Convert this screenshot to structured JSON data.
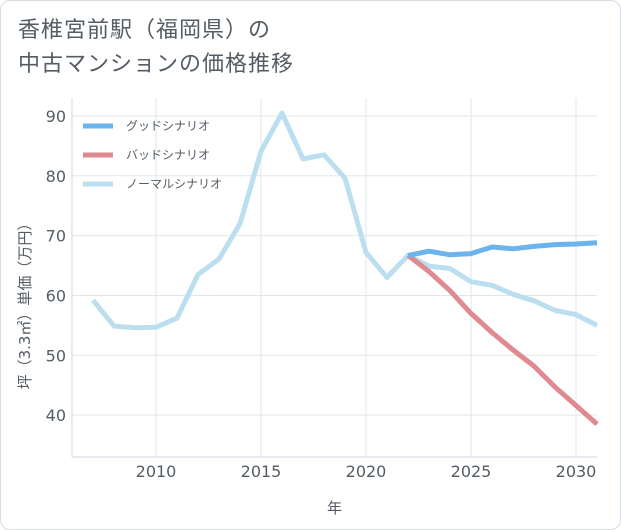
{
  "title": {
    "line1": "香椎宮前駅（福岡県）の",
    "line2": "中古マンションの価格推移"
  },
  "chart_data": {
    "type": "line",
    "xlabel": "年",
    "ylabel": "坪（3.3㎡）単価（万円）",
    "xlim": [
      2006,
      2031
    ],
    "ylim": [
      33,
      93
    ],
    "xticks": [
      2010,
      2015,
      2020,
      2025,
      2030
    ],
    "yticks": [
      40,
      50,
      60,
      70,
      80,
      90
    ],
    "legend_position": "top-left",
    "series": [
      {
        "name": "グッドシナリオ",
        "color": "#6cb4ee",
        "x": [
          2022,
          2023,
          2024,
          2025,
          2026,
          2027,
          2028,
          2029,
          2030,
          2031
        ],
        "values": [
          66.7,
          67.4,
          66.8,
          67.0,
          68.1,
          67.8,
          68.2,
          68.5,
          68.6,
          68.8
        ]
      },
      {
        "name": "バッドシナリオ",
        "color": "#df8a90",
        "x": [
          2022,
          2023,
          2024,
          2025,
          2026,
          2027,
          2028,
          2029,
          2030,
          2031
        ],
        "values": [
          66.7,
          64.0,
          60.8,
          57.0,
          53.8,
          50.9,
          48.2,
          44.7,
          41.6,
          38.5
        ]
      },
      {
        "name": "ノーマルシナリオ",
        "color": "#bcdff0",
        "x": [
          2007,
          2008,
          2009,
          2010,
          2011,
          2012,
          2013,
          2014,
          2015,
          2016,
          2017,
          2018,
          2019,
          2020,
          2021,
          2022,
          2023,
          2024,
          2025,
          2026,
          2027,
          2028,
          2029,
          2030,
          2031
        ],
        "values": [
          59.2,
          54.9,
          54.6,
          54.7,
          56.2,
          63.5,
          66.1,
          72.0,
          84.1,
          90.5,
          82.8,
          83.5,
          79.6,
          67.2,
          63.0,
          66.7,
          64.9,
          64.5,
          62.3,
          61.7,
          60.2,
          59.1,
          57.5,
          56.8,
          55.0
        ]
      }
    ]
  }
}
